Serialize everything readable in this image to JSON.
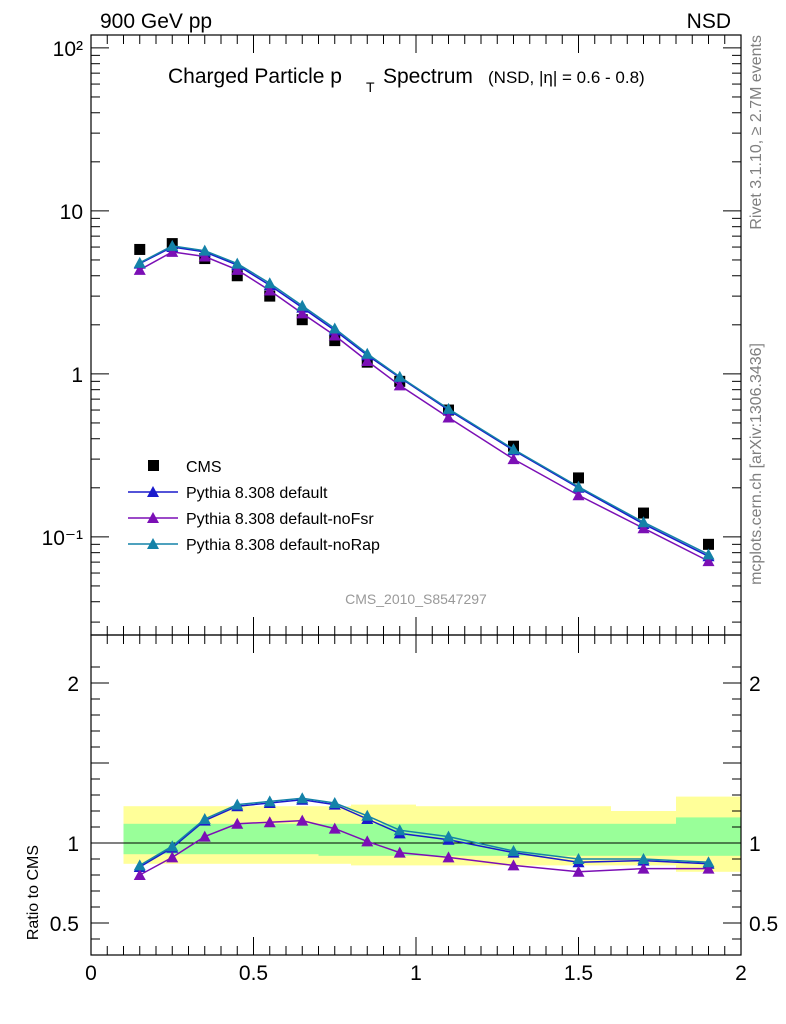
{
  "header": {
    "left": "900 GeV pp",
    "right": "NSD"
  },
  "side_labels": {
    "top": "Rivet 3.1.10, ≥ 2.7M events",
    "bottom": "mcplots.cern.ch [arXiv:1306.3436]"
  },
  "chart_data": [
    {
      "type": "line",
      "title": "Charged Particle p",
      "title_subscript": "T",
      "title_suffix": "Spectrum",
      "subtitle": "(NSD, |η| = 0.6 - 0.8)",
      "analysis_label": "CMS_2010_S8547297",
      "yscale": "log",
      "ylim": [
        0.025,
        120
      ],
      "xlim": [
        0,
        2
      ],
      "y_tick_labels": [
        "10⁻¹",
        "1",
        "10",
        "10²"
      ],
      "legend_position": "bottom-left",
      "x": [
        0.15,
        0.25,
        0.35,
        0.45,
        0.55,
        0.65,
        0.75,
        0.85,
        0.95,
        1.1,
        1.3,
        1.5,
        1.7,
        1.9
      ],
      "series": [
        {
          "name": "CMS",
          "marker": "square",
          "color": "#000000",
          "values": [
            5.8,
            6.3,
            5.1,
            4.0,
            3.0,
            2.15,
            1.6,
            1.18,
            0.9,
            0.6,
            0.36,
            0.23,
            0.14,
            0.09
          ]
        },
        {
          "name": "Pythia 8.308 default",
          "marker": "triangle",
          "color": "#1a1acc",
          "values": [
            4.75,
            6.0,
            5.6,
            4.65,
            3.5,
            2.55,
            1.85,
            1.3,
            0.95,
            0.6,
            0.34,
            0.2,
            0.12,
            0.076
          ]
        },
        {
          "name": "Pythia 8.308 default-noFsr",
          "marker": "triangle",
          "color": "#7b0fb5",
          "values": [
            4.35,
            5.6,
            5.25,
            4.35,
            3.25,
            2.35,
            1.72,
            1.2,
            0.85,
            0.54,
            0.3,
            0.18,
            0.113,
            0.071
          ]
        },
        {
          "name": "Pythia 8.308 default-noRap",
          "marker": "triangle",
          "color": "#1482a8",
          "values": [
            4.8,
            6.1,
            5.7,
            4.75,
            3.6,
            2.62,
            1.9,
            1.33,
            0.96,
            0.61,
            0.345,
            0.203,
            0.123,
            0.078
          ]
        }
      ]
    },
    {
      "type": "line",
      "ylabel": "Ratio to CMS",
      "ylim": [
        0.3,
        2.3
      ],
      "xlim": [
        0,
        2
      ],
      "x_tick_labels": [
        "0",
        "0.5",
        "1",
        "1.5",
        "2"
      ],
      "y_tick_labels": [
        "0.5",
        "1",
        "2"
      ],
      "bands": {
        "x_edges": [
          0.1,
          0.2,
          0.3,
          0.4,
          0.5,
          0.6,
          0.7,
          0.8,
          0.9,
          1.0,
          1.2,
          1.4,
          1.6,
          1.8,
          2.0
        ],
        "yellow_low": [
          0.87,
          0.87,
          0.87,
          0.87,
          0.87,
          0.87,
          0.87,
          0.86,
          0.86,
          0.86,
          0.86,
          0.86,
          0.86,
          0.82
        ],
        "yellow_high": [
          1.23,
          1.23,
          1.23,
          1.23,
          1.23,
          1.23,
          1.23,
          1.24,
          1.24,
          1.23,
          1.23,
          1.23,
          1.2,
          1.29
        ],
        "green_low": [
          0.93,
          0.93,
          0.93,
          0.93,
          0.93,
          0.93,
          0.92,
          0.92,
          0.92,
          0.92,
          0.92,
          0.92,
          0.92,
          0.92
        ],
        "green_high": [
          1.12,
          1.12,
          1.12,
          1.12,
          1.12,
          1.12,
          1.12,
          1.12,
          1.12,
          1.12,
          1.12,
          1.12,
          1.12,
          1.16
        ],
        "yellow_color": "#ffff99",
        "green_color": "#99ff99"
      },
      "x": [
        0.15,
        0.25,
        0.35,
        0.45,
        0.55,
        0.65,
        0.75,
        0.85,
        0.95,
        1.1,
        1.3,
        1.5,
        1.7,
        1.9
      ],
      "series": [
        {
          "name": "Pythia 8.308 default",
          "color": "#1a1acc",
          "values": [
            0.85,
            0.97,
            1.14,
            1.23,
            1.25,
            1.27,
            1.24,
            1.15,
            1.06,
            1.02,
            0.94,
            0.88,
            0.89,
            0.87
          ]
        },
        {
          "name": "Pythia 8.308 default-noFsr",
          "color": "#7b0fb5",
          "values": [
            0.8,
            0.91,
            1.04,
            1.12,
            1.13,
            1.14,
            1.09,
            1.01,
            0.94,
            0.91,
            0.86,
            0.82,
            0.84,
            0.84
          ]
        },
        {
          "name": "Pythia 8.308 default-noRap",
          "color": "#1482a8",
          "values": [
            0.86,
            0.98,
            1.15,
            1.24,
            1.26,
            1.28,
            1.25,
            1.17,
            1.08,
            1.04,
            0.95,
            0.9,
            0.9,
            0.88
          ]
        }
      ]
    }
  ]
}
